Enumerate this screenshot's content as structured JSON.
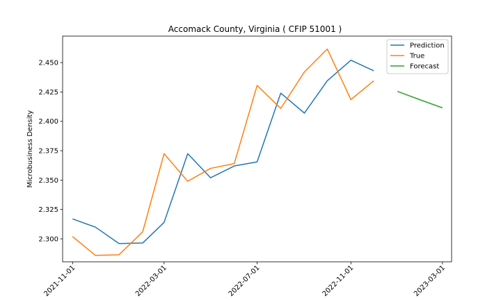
{
  "chart_data": {
    "type": "line",
    "title": "Accomack County, Virginia ( CFIP 51001 )",
    "xlabel": "",
    "ylabel": "Microbusiness Density",
    "x_ticks": [
      "2021-11-01",
      "2022-03-01",
      "2022-07-01",
      "2022-11-01",
      "2023-03-01"
    ],
    "y_ticks": [
      "2.300",
      "2.325",
      "2.350",
      "2.375",
      "2.400",
      "2.425",
      "2.450"
    ],
    "ylim": [
      2.2805,
      2.4725
    ],
    "xlim": [
      "2021-10-19",
      "2023-03-13"
    ],
    "grid": false,
    "legend_position": "top-right",
    "series": [
      {
        "name": "Prediction",
        "color": "#1f77b4",
        "x": [
          "2021-11-01",
          "2021-12-01",
          "2022-01-01",
          "2022-02-01",
          "2022-03-01",
          "2022-04-01",
          "2022-05-01",
          "2022-06-01",
          "2022-07-01",
          "2022-08-01",
          "2022-09-01",
          "2022-10-01",
          "2022-11-01",
          "2022-12-01"
        ],
        "y": [
          2.317,
          2.31,
          2.296,
          2.2965,
          2.314,
          2.3725,
          2.352,
          2.362,
          2.3655,
          2.424,
          2.407,
          2.4345,
          2.452,
          2.443
        ]
      },
      {
        "name": "True",
        "color": "#ff7f0e",
        "x": [
          "2021-11-01",
          "2021-12-01",
          "2022-01-01",
          "2022-02-01",
          "2022-03-01",
          "2022-04-01",
          "2022-05-01",
          "2022-06-01",
          "2022-07-01",
          "2022-08-01",
          "2022-09-01",
          "2022-10-01",
          "2022-11-01",
          "2022-12-01"
        ],
        "y": [
          2.302,
          2.286,
          2.2865,
          2.306,
          2.3725,
          2.349,
          2.36,
          2.364,
          2.4305,
          2.411,
          2.442,
          2.4615,
          2.4185,
          2.4345
        ]
      },
      {
        "name": "Forecast",
        "color": "#2ca02c",
        "x": [
          "2023-01-01",
          "2023-02-01",
          "2023-03-01"
        ],
        "y": [
          2.4255,
          2.418,
          2.4115
        ]
      }
    ]
  }
}
